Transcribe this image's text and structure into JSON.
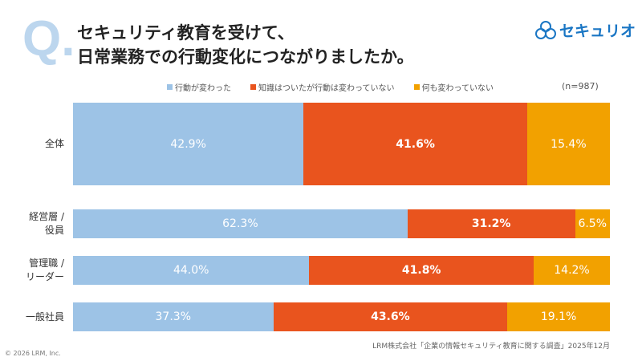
{
  "header": {
    "q_mark": "Q.",
    "title_line1": "セキュリティ教育を受けて、",
    "title_line2": "日常業務での行動変化につながりましたか。",
    "logo_text": "セキュリオ"
  },
  "chart_data": {
    "type": "stacked-bar-horizontal",
    "sample_size": "(n=987)",
    "legend_position": "top",
    "series": [
      {
        "name": "行動が変わった",
        "color": "#9DC3E6"
      },
      {
        "name": "知識はついたが行動は変わっていない",
        "color": "#E9541E"
      },
      {
        "name": "何も変わっていない",
        "color": "#F2A100"
      }
    ],
    "categories": [
      "全体",
      "経営層／役員",
      "管理職／リーダー",
      "一般社員"
    ],
    "category_labels": [
      [
        "全体"
      ],
      [
        "経営層 /",
        "役員"
      ],
      [
        "管理職 /",
        "リーダー"
      ],
      [
        "一般社員"
      ]
    ],
    "values": [
      [
        42.9,
        41.6,
        15.4
      ],
      [
        62.3,
        31.2,
        6.5
      ],
      [
        44.0,
        41.8,
        14.2
      ],
      [
        37.3,
        43.6,
        19.1
      ]
    ],
    "value_labels": [
      [
        "42.9%",
        "41.6%",
        "15.4%"
      ],
      [
        "62.3%",
        "31.2%",
        "6.5%"
      ],
      [
        "44.0%",
        "41.8%",
        "14.2%"
      ],
      [
        "37.3%",
        "43.6%",
        "19.1%"
      ]
    ],
    "xlim": [
      0,
      100
    ]
  },
  "footer": {
    "source": "LRM株式会社「企業の情報セキュリティ教育に関する調査」2025年12月",
    "copyright": "© 2026 LRM, Inc."
  }
}
